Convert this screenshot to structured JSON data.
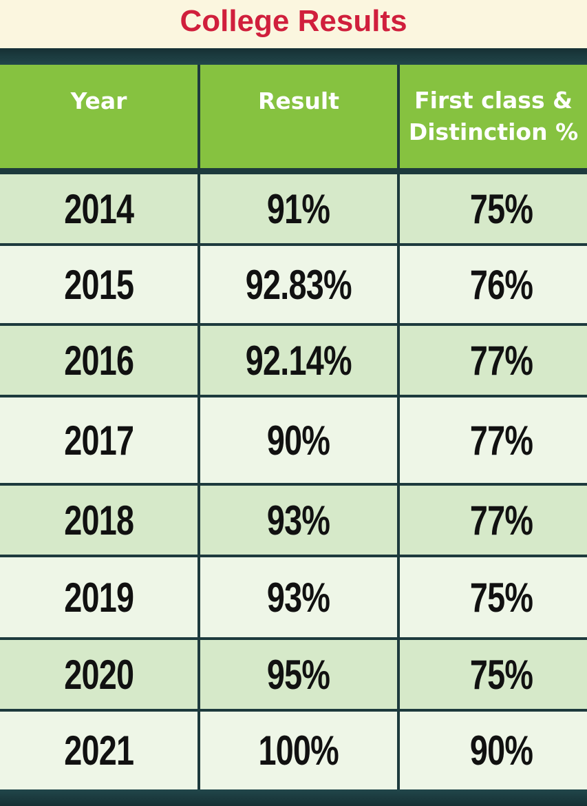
{
  "title": "College Results",
  "columns": [
    "Year",
    "Result",
    "First class & Distinction %"
  ],
  "header_lines": {
    "year": "Year",
    "result": "Result",
    "distinction_line1": "First class &",
    "distinction_line2": "Distinction %"
  },
  "rows": [
    {
      "year": "2014",
      "result": "91%",
      "distinction": "75%"
    },
    {
      "year": "2015",
      "result": "92.83%",
      "distinction": "76%"
    },
    {
      "year": "2016",
      "result": "92.14%",
      "distinction": "77%"
    },
    {
      "year": "2017",
      "result": "90%",
      "distinction": "77%"
    },
    {
      "year": "2018",
      "result": "93%",
      "distinction": "77%"
    },
    {
      "year": "2019",
      "result": "93%",
      "distinction": "75%"
    },
    {
      "year": "2020",
      "result": "95%",
      "distinction": "75%"
    },
    {
      "year": "2021",
      "result": "100%",
      "distinction": "90%"
    }
  ],
  "colors": {
    "title": "#d01f3c",
    "title_background": "#fbf6df",
    "header_background": "#86c240",
    "row_dark": "#d6e9c9",
    "row_light": "#eef6e7",
    "frame": "#1d3a3d"
  }
}
